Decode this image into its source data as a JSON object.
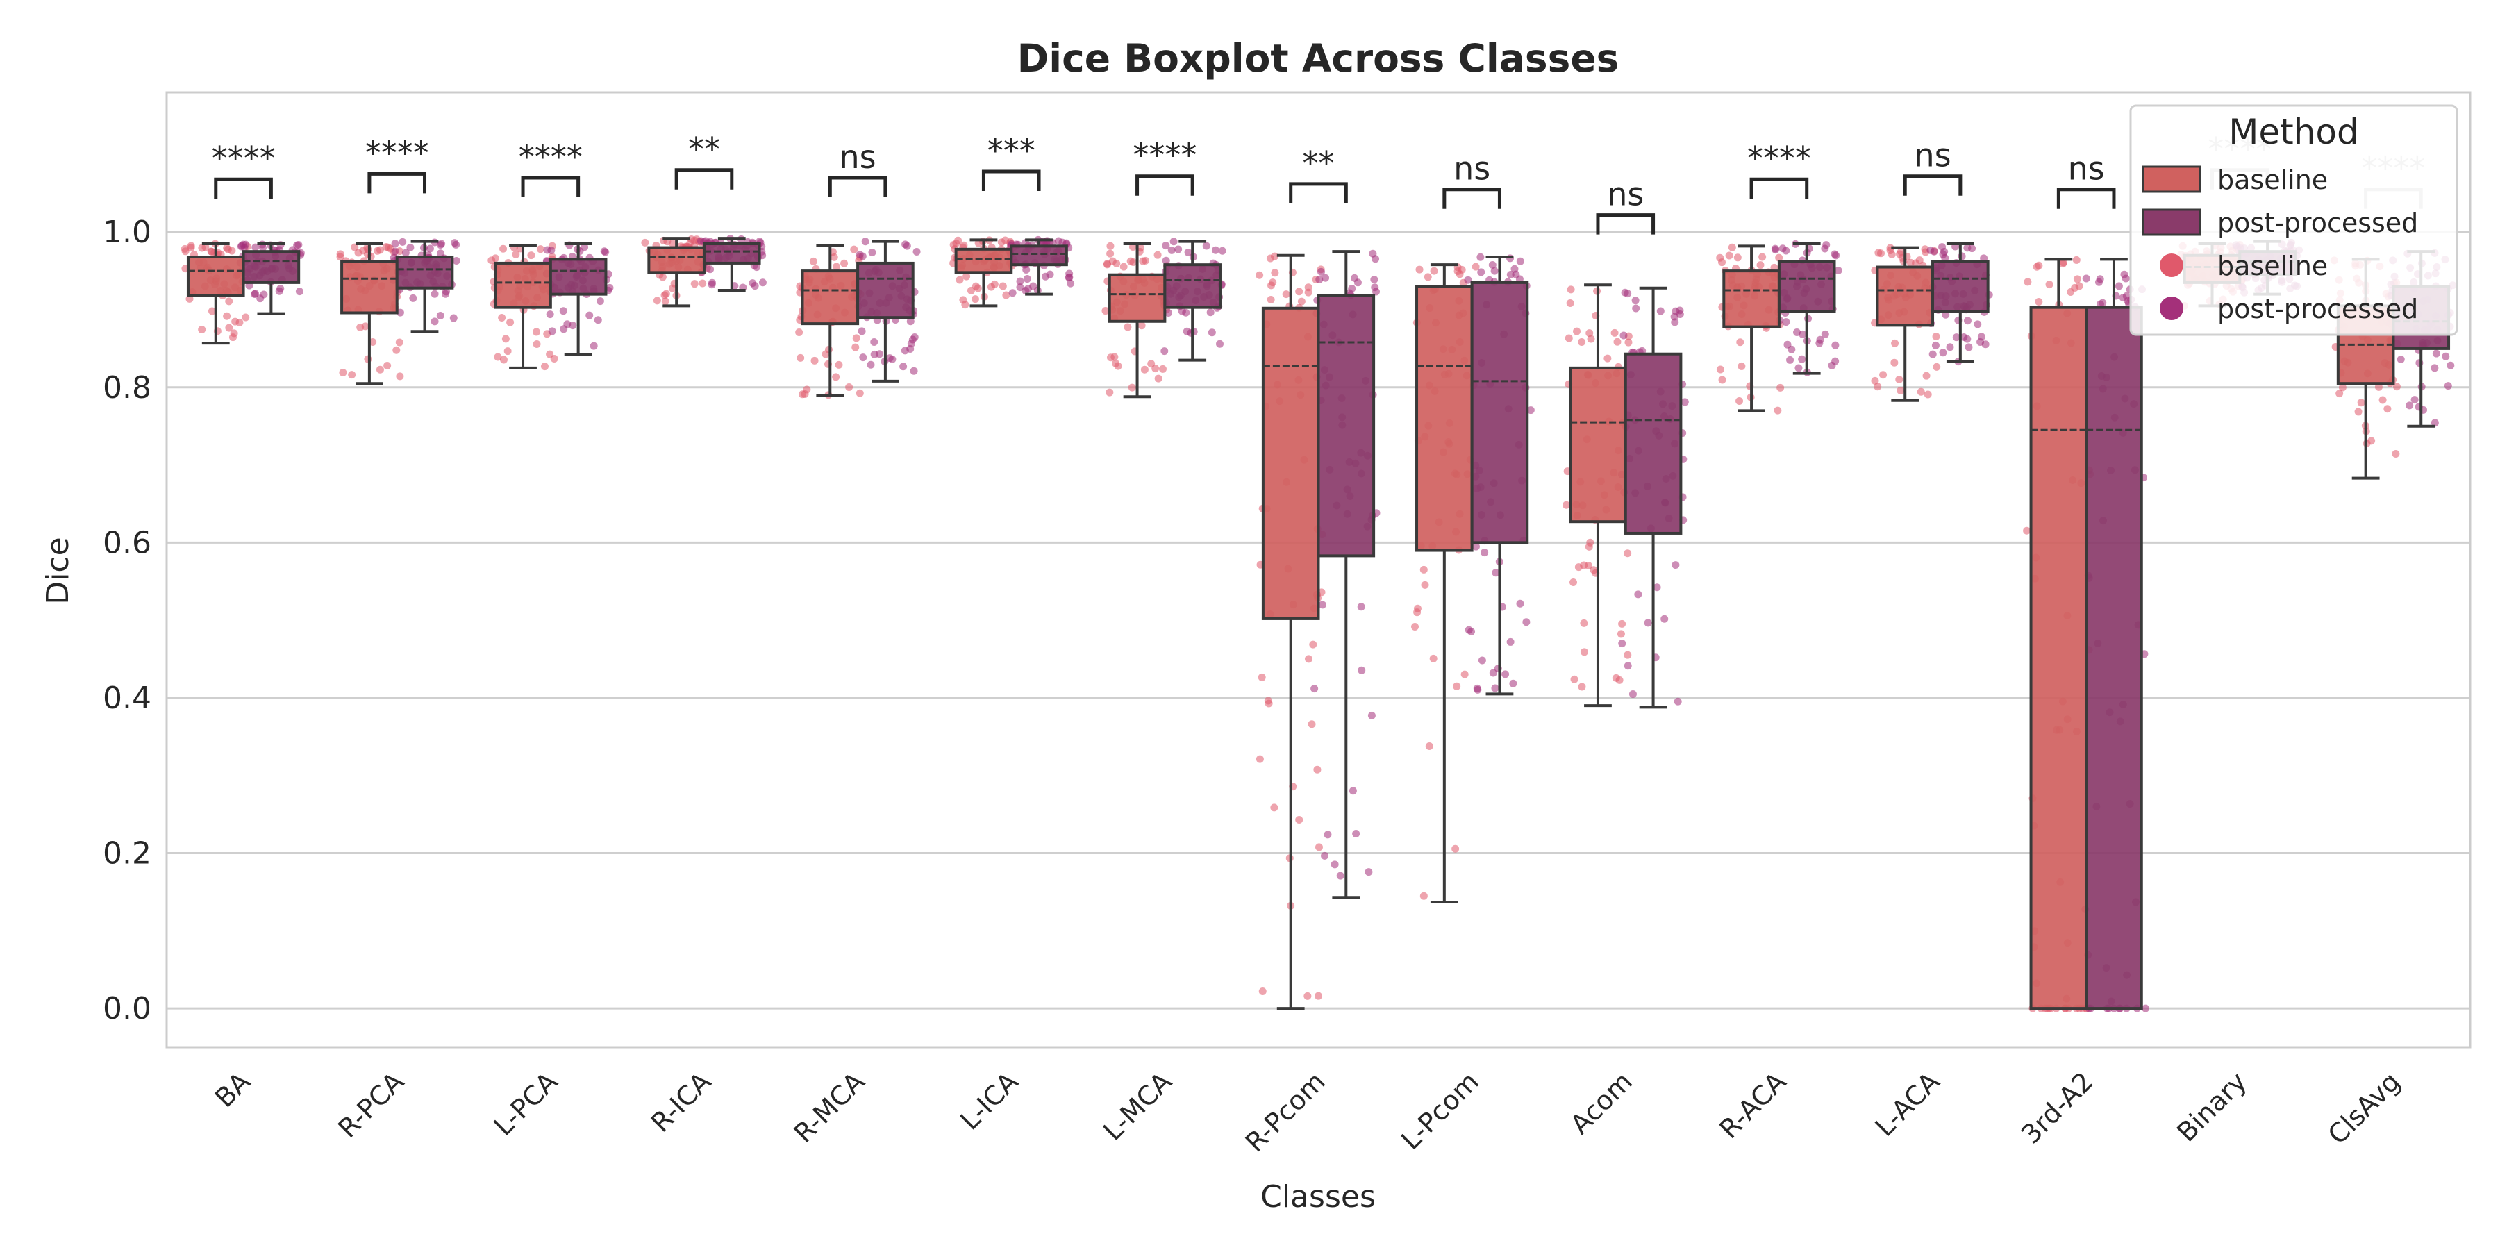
{
  "chart_data": {
    "type": "boxplot",
    "title": "Dice Boxplot Across Classes",
    "xlabel": "Classes",
    "ylabel": "Dice",
    "ylim": [
      -0.05,
      1.18
    ],
    "yticks": [
      "0.0",
      "0.2",
      "0.4",
      "0.6",
      "0.8",
      "1.0"
    ],
    "grid": "horizontal",
    "legend": {
      "title": "Method",
      "position": "top-right",
      "entries": [
        {
          "kind": "box",
          "label": "baseline"
        },
        {
          "kind": "box",
          "label": "post-processed"
        },
        {
          "kind": "point",
          "label": "baseline"
        },
        {
          "kind": "point",
          "label": "post-processed"
        }
      ]
    },
    "colors": {
      "baseline_box": "#d0615f",
      "post_box": "#8a3b6a",
      "baseline_point": "#e0596b",
      "post_point": "#a4307a",
      "edge": "#3a3a3a",
      "grid": "#cfcfcf",
      "frame": "#cccccc"
    },
    "categories": [
      "BA",
      "R-PCA",
      "L-PCA",
      "R-ICA",
      "R-MCA",
      "L-ICA",
      "L-MCA",
      "R-Pcom",
      "L-Pcom",
      "Acom",
      "R-ACA",
      "L-ACA",
      "3rd-A2",
      "Binary",
      "ClsAvg"
    ],
    "series": [
      {
        "name": "baseline",
        "boxes": [
          {
            "whislo": 0.857,
            "q1": 0.918,
            "med": 0.95,
            "q3": 0.968,
            "whishi": 0.985
          },
          {
            "whislo": 0.805,
            "q1": 0.896,
            "med": 0.94,
            "q3": 0.962,
            "whishi": 0.985
          },
          {
            "whislo": 0.825,
            "q1": 0.903,
            "med": 0.935,
            "q3": 0.96,
            "whishi": 0.983
          },
          {
            "whislo": 0.905,
            "q1": 0.948,
            "med": 0.968,
            "q3": 0.98,
            "whishi": 0.992
          },
          {
            "whislo": 0.79,
            "q1": 0.882,
            "med": 0.925,
            "q3": 0.95,
            "whishi": 0.983
          },
          {
            "whislo": 0.905,
            "q1": 0.948,
            "med": 0.965,
            "q3": 0.978,
            "whishi": 0.99
          },
          {
            "whislo": 0.788,
            "q1": 0.885,
            "med": 0.92,
            "q3": 0.945,
            "whishi": 0.985
          },
          {
            "whislo": 0.0,
            "q1": 0.502,
            "med": 0.828,
            "q3": 0.902,
            "whishi": 0.97
          },
          {
            "whislo": 0.137,
            "q1": 0.59,
            "med": 0.828,
            "q3": 0.93,
            "whishi": 0.958
          },
          {
            "whislo": 0.39,
            "q1": 0.627,
            "med": 0.755,
            "q3": 0.825,
            "whishi": 0.932
          },
          {
            "whislo": 0.77,
            "q1": 0.878,
            "med": 0.925,
            "q3": 0.95,
            "whishi": 0.982
          },
          {
            "whislo": 0.783,
            "q1": 0.88,
            "med": 0.925,
            "q3": 0.955,
            "whishi": 0.98
          },
          {
            "whislo": 0.0,
            "q1": 0.0,
            "med": 0.745,
            "q3": 0.903,
            "whishi": 0.965
          },
          {
            "whislo": 0.905,
            "q1": 0.935,
            "med": 0.955,
            "q3": 0.97,
            "whishi": 0.985
          },
          {
            "whislo": 0.683,
            "q1": 0.805,
            "med": 0.855,
            "q3": 0.905,
            "whishi": 0.965
          }
        ]
      },
      {
        "name": "post-processed",
        "boxes": [
          {
            "whislo": 0.895,
            "q1": 0.935,
            "med": 0.963,
            "q3": 0.975,
            "whishi": 0.985
          },
          {
            "whislo": 0.872,
            "q1": 0.928,
            "med": 0.952,
            "q3": 0.968,
            "whishi": 0.988
          },
          {
            "whislo": 0.842,
            "q1": 0.92,
            "med": 0.95,
            "q3": 0.965,
            "whishi": 0.985
          },
          {
            "whislo": 0.925,
            "q1": 0.96,
            "med": 0.975,
            "q3": 0.985,
            "whishi": 0.992
          },
          {
            "whislo": 0.808,
            "q1": 0.89,
            "med": 0.94,
            "q3": 0.96,
            "whishi": 0.988
          },
          {
            "whislo": 0.92,
            "q1": 0.958,
            "med": 0.972,
            "q3": 0.982,
            "whishi": 0.99
          },
          {
            "whislo": 0.835,
            "q1": 0.903,
            "med": 0.938,
            "q3": 0.958,
            "whishi": 0.988
          },
          {
            "whislo": 0.143,
            "q1": 0.583,
            "med": 0.858,
            "q3": 0.918,
            "whishi": 0.975
          },
          {
            "whislo": 0.405,
            "q1": 0.6,
            "med": 0.808,
            "q3": 0.935,
            "whishi": 0.968
          },
          {
            "whislo": 0.388,
            "q1": 0.612,
            "med": 0.758,
            "q3": 0.843,
            "whishi": 0.928
          },
          {
            "whislo": 0.818,
            "q1": 0.898,
            "med": 0.94,
            "q3": 0.962,
            "whishi": 0.985
          },
          {
            "whislo": 0.833,
            "q1": 0.898,
            "med": 0.94,
            "q3": 0.962,
            "whishi": 0.985
          },
          {
            "whislo": 0.0,
            "q1": 0.0,
            "med": 0.745,
            "q3": 0.903,
            "whishi": 0.965
          },
          {
            "whislo": 0.92,
            "q1": 0.945,
            "med": 0.962,
            "q3": 0.975,
            "whishi": 0.988
          },
          {
            "whislo": 0.75,
            "q1": 0.85,
            "med": 0.885,
            "q3": 0.93,
            "whishi": 0.975
          }
        ]
      }
    ],
    "significance": [
      {
        "label": "****",
        "y": 1.068
      },
      {
        "label": "****",
        "y": 1.075
      },
      {
        "label": "****",
        "y": 1.07
      },
      {
        "label": "**",
        "y": 1.08
      },
      {
        "label": "ns",
        "y": 1.07
      },
      {
        "label": "***",
        "y": 1.078
      },
      {
        "label": "****",
        "y": 1.072
      },
      {
        "label": "**",
        "y": 1.062
      },
      {
        "label": "ns",
        "y": 1.055
      },
      {
        "label": "ns",
        "y": 1.022
      },
      {
        "label": "****",
        "y": 1.068
      },
      {
        "label": "ns",
        "y": 1.072
      },
      {
        "label": "ns",
        "y": 1.055
      },
      {
        "label": "****",
        "y": 1.08
      },
      {
        "label": "****",
        "y": 1.055
      }
    ]
  }
}
